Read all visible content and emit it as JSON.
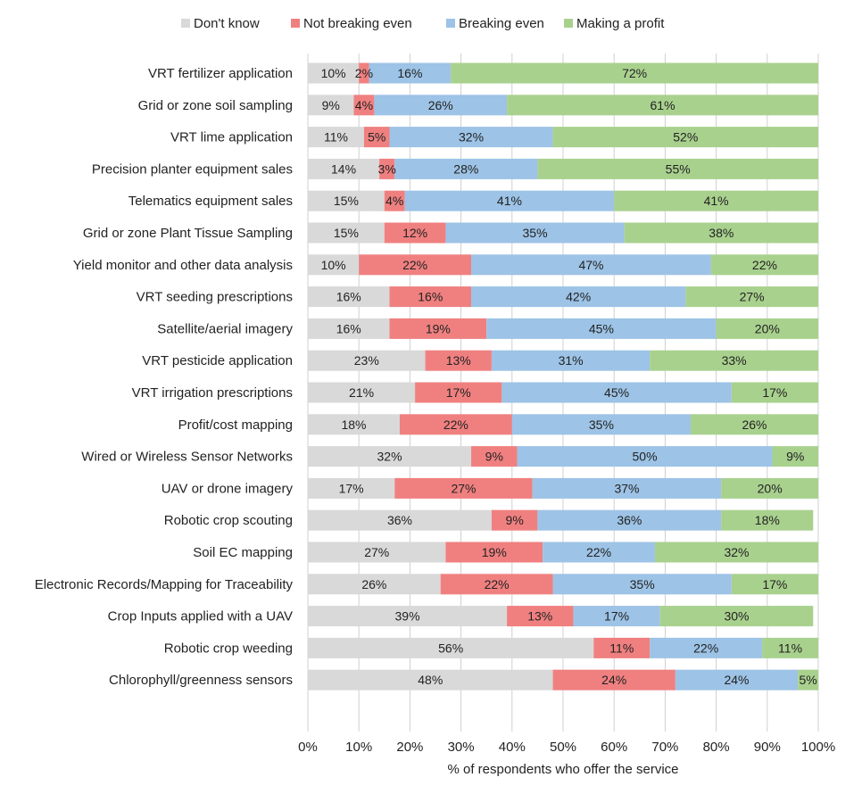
{
  "chart_data": {
    "type": "bar",
    "orientation": "horizontal",
    "stacked": true,
    "title": "",
    "xlabel": "% of respondents who offer the service",
    "ylabel": "",
    "xlim": [
      0,
      100
    ],
    "x_ticks": [
      "0%",
      "10%",
      "20%",
      "30%",
      "40%",
      "50%",
      "60%",
      "70%",
      "80%",
      "90%",
      "100%"
    ],
    "grid": true,
    "legend_position": "top",
    "categories": [
      "VRT fertilizer application",
      "Grid or zone soil sampling",
      "VRT lime application",
      "Precision planter equipment sales",
      "Telematics equipment sales",
      "Grid or zone Plant Tissue Sampling",
      "Yield monitor and other data analysis",
      "VRT seeding prescriptions",
      "Satellite/aerial imagery",
      "VRT pesticide application",
      "VRT irrigation prescriptions",
      "Profit/cost mapping",
      "Wired or Wireless Sensor Networks",
      "UAV or drone imagery",
      "Robotic crop scouting",
      "Soil EC mapping",
      "Electronic Records/Mapping for Traceability",
      "Crop Inputs applied with a UAV",
      "Robotic crop weeding",
      "Chlorophyll/greenness sensors"
    ],
    "series": [
      {
        "name": "Don't know",
        "color": "#d9d9d9",
        "values": [
          10,
          9,
          11,
          14,
          15,
          15,
          10,
          16,
          16,
          23,
          21,
          18,
          32,
          17,
          36,
          27,
          26,
          39,
          56,
          48
        ]
      },
      {
        "name": "Not breaking even",
        "color": "#f08080",
        "values": [
          2,
          4,
          5,
          3,
          4,
          12,
          22,
          16,
          19,
          13,
          17,
          22,
          9,
          27,
          9,
          19,
          22,
          13,
          11,
          24
        ]
      },
      {
        "name": "Breaking even",
        "color": "#9dc3e6",
        "values": [
          16,
          26,
          32,
          28,
          41,
          35,
          47,
          42,
          45,
          31,
          45,
          35,
          50,
          37,
          36,
          22,
          35,
          17,
          22,
          24
        ]
      },
      {
        "name": "Making a profit",
        "color": "#a9d18e",
        "values": [
          72,
          61,
          52,
          55,
          41,
          38,
          22,
          27,
          20,
          33,
          17,
          26,
          9,
          20,
          18,
          32,
          17,
          30,
          11,
          5
        ]
      }
    ]
  }
}
